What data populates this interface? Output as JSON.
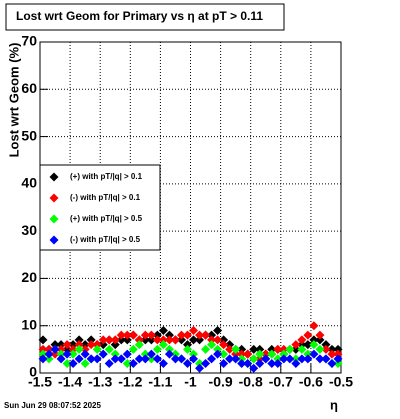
{
  "chart_data": {
    "type": "scatter",
    "title": "Lost wrt Geom for Primary vs   η  at pT > 0.11",
    "y_label": "Lost wrt Geom (%)",
    "x_label": "η",
    "footer": "Sun Jun 29 08:07:52 2025",
    "xlim": [
      -1.5,
      -0.5
    ],
    "xticks": [
      -1.5,
      -1.4,
      -1.3,
      -1.2,
      -1.1,
      -1,
      -0.9,
      -0.8,
      -0.7,
      -0.6,
      -0.5
    ],
    "ylim": [
      0,
      70
    ],
    "yticks": [
      0,
      10,
      20,
      30,
      40,
      50,
      60,
      70
    ],
    "grid": true,
    "x": [
      -1.49,
      -1.47,
      -1.45,
      -1.43,
      -1.41,
      -1.39,
      -1.37,
      -1.35,
      -1.33,
      -1.31,
      -1.29,
      -1.27,
      -1.25,
      -1.23,
      -1.21,
      -1.19,
      -1.17,
      -1.15,
      -1.13,
      -1.11,
      -1.09,
      -1.07,
      -1.05,
      -1.03,
      -1.01,
      -0.99,
      -0.97,
      -0.95,
      -0.93,
      -0.91,
      -0.89,
      -0.87,
      -0.85,
      -0.83,
      -0.81,
      -0.79,
      -0.77,
      -0.75,
      -0.73,
      -0.71,
      -0.69,
      -0.67,
      -0.65,
      -0.63,
      -0.61,
      -0.59,
      -0.57,
      -0.55,
      -0.53,
      -0.51
    ],
    "series": [
      {
        "name": "(+) with pT/|q| > 0.1",
        "color": "#000000",
        "values": [
          7,
          5,
          6,
          6,
          5,
          6,
          7,
          6,
          7,
          6,
          6,
          7,
          6,
          7,
          7,
          8,
          7,
          7,
          7,
          8,
          9,
          8,
          7,
          7,
          6,
          7,
          7,
          8,
          8,
          9,
          7,
          6,
          5,
          5,
          4,
          5,
          5,
          4,
          5,
          5,
          4,
          5,
          5,
          6,
          6,
          7,
          7,
          6,
          5,
          5
        ]
      },
      {
        "name": "(-) with pT/|q| > 0.1",
        "color": "#ff0000",
        "values": [
          5,
          5,
          4,
          5,
          6,
          5,
          6,
          5,
          6,
          6,
          7,
          7,
          7,
          8,
          8,
          8,
          7,
          8,
          8,
          7,
          7,
          7,
          7,
          8,
          8,
          9,
          8,
          8,
          7,
          7,
          6,
          5,
          4,
          4,
          4,
          3,
          3,
          4,
          4,
          5,
          5,
          5,
          6,
          7,
          8,
          10,
          8,
          5,
          4,
          4
        ]
      },
      {
        "name": "(+) with pT/|q| > 0.5",
        "color": "#00ff00",
        "values": [
          4,
          3,
          5,
          4,
          2,
          4,
          5,
          2,
          3,
          5,
          4,
          5,
          4,
          3,
          2,
          5,
          6,
          4,
          3,
          5,
          6,
          5,
          4,
          3,
          5,
          4,
          2,
          5,
          6,
          5,
          4,
          3,
          5,
          3,
          2,
          3,
          4,
          3,
          4,
          3,
          4,
          5,
          3,
          5,
          4,
          6,
          5,
          3,
          2,
          2
        ]
      },
      {
        "name": "(-) with pT/|q| > 0.5",
        "color": "#0000ff",
        "values": [
          3,
          4,
          5,
          3,
          4,
          2,
          3,
          4,
          3,
          3,
          4,
          2,
          3,
          3,
          4,
          2,
          3,
          3,
          4,
          3,
          2,
          4,
          3,
          3,
          2,
          3,
          1,
          2,
          3,
          4,
          2,
          3,
          3,
          2,
          2,
          1,
          2,
          3,
          2,
          2,
          3,
          3,
          2,
          3,
          3,
          4,
          3,
          3,
          2,
          3
        ]
      }
    ]
  }
}
